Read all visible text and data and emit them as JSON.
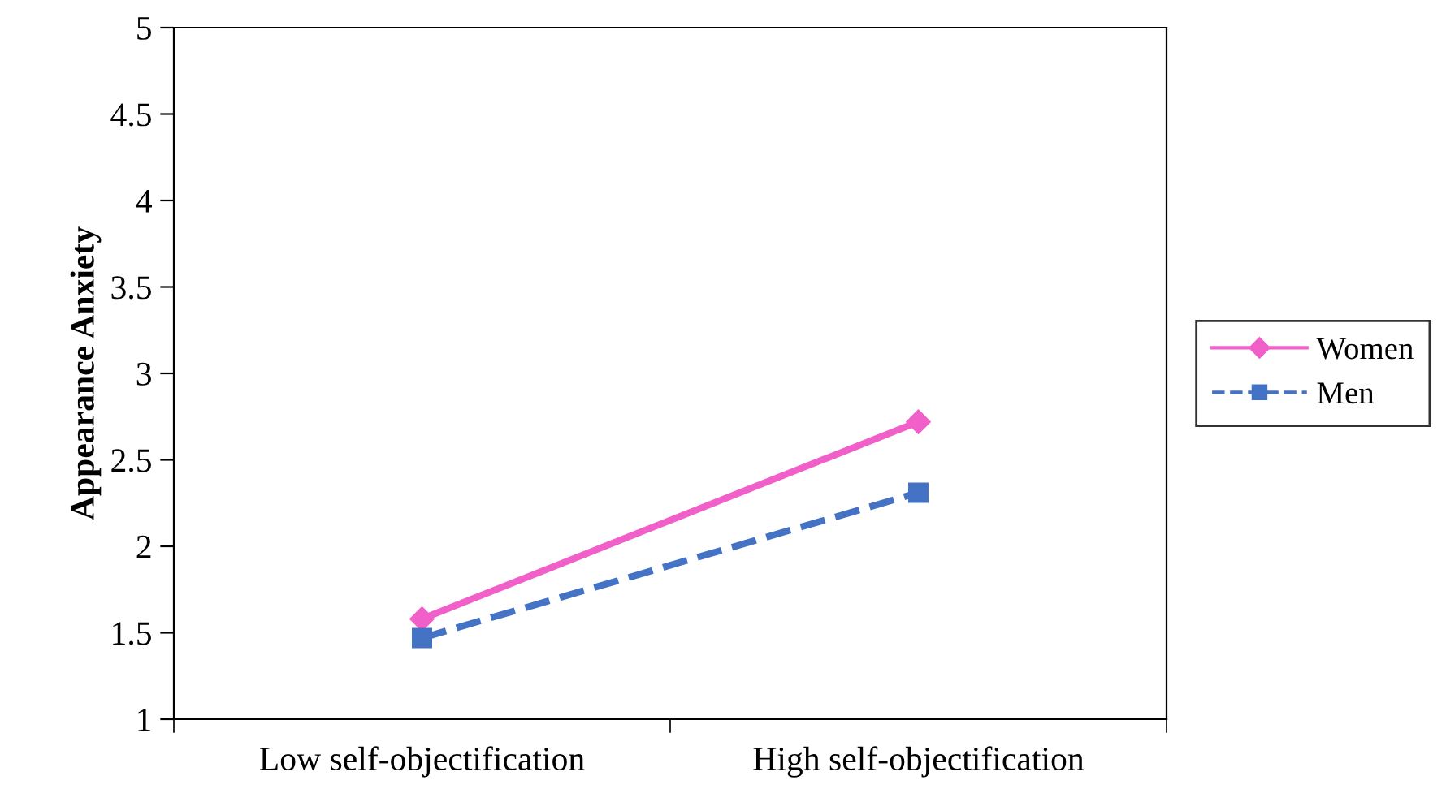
{
  "chart_data": {
    "type": "line",
    "ylabel": "Appearance Anxiety",
    "categories": [
      "Low self-objectification",
      "High self-objectification"
    ],
    "series": [
      {
        "name": "Women",
        "color": "#f060c8",
        "values": [
          1.58,
          2.72
        ],
        "marker": "diamond",
        "line_style": "solid"
      },
      {
        "name": "Men",
        "color": "#4472c4",
        "values": [
          1.47,
          2.31
        ],
        "marker": "square",
        "line_style": "dashed"
      }
    ],
    "ylim": [
      1,
      5
    ],
    "yticks": [
      1,
      1.5,
      2,
      2.5,
      3,
      3.5,
      4,
      4.5,
      5
    ],
    "grid": false,
    "legend": "right"
  }
}
